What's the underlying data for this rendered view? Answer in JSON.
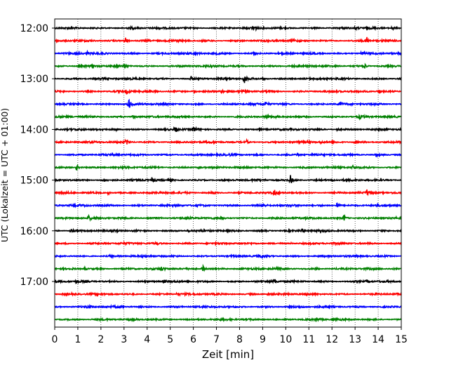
{
  "chart_data": {
    "type": "line",
    "title": "",
    "xlabel": "Zeit  [min]",
    "ylabel": "UTC (Lokalzeit = UTC + 01:00)",
    "xlim": [
      0,
      15
    ],
    "x_ticks": [
      "0",
      "1",
      "2",
      "3",
      "4",
      "5",
      "6",
      "7",
      "8",
      "9",
      "10",
      "11",
      "12",
      "13",
      "14",
      "15"
    ],
    "y_ticks": [
      "12:00",
      "13:00",
      "14:00",
      "15:00",
      "16:00",
      "17:00"
    ],
    "grid": "vertical dotted",
    "colors": [
      "#000000",
      "#ff0000",
      "#0000ff",
      "#008000"
    ],
    "traces": [
      {
        "time": "12:00",
        "color": "#000000",
        "events": [
          [
            8.6,
            3.0
          ],
          [
            3.3,
            0.9
          ],
          [
            13.0,
            0.8
          ],
          [
            14.6,
            1.1
          ]
        ]
      },
      {
        "time": "12:15",
        "color": "#ff0000",
        "events": [
          [
            3.05,
            2.2
          ],
          [
            13.5,
            2.4
          ],
          [
            10.2,
            0.7
          ]
        ]
      },
      {
        "time": "12:30",
        "color": "#0000ff",
        "events": [
          [
            1.4,
            1.2
          ],
          [
            8.6,
            1.4
          ],
          [
            13.3,
            1.6
          ],
          [
            7.0,
            0.6
          ]
        ]
      },
      {
        "time": "12:45",
        "color": "#008000",
        "events": [
          [
            3.0,
            2.0
          ],
          [
            13.4,
            2.0
          ],
          [
            1.6,
            1.0
          ]
        ]
      },
      {
        "time": "13:00",
        "color": "#000000",
        "events": [
          [
            8.2,
            3.2
          ],
          [
            5.9,
            1.4
          ],
          [
            9.0,
            1.0
          ]
        ]
      },
      {
        "time": "13:15",
        "color": "#ff0000",
        "events": [
          [
            3.1,
            2.0
          ],
          [
            14.0,
            2.4
          ],
          [
            7.2,
            1.2
          ],
          [
            6.0,
            0.9
          ]
        ]
      },
      {
        "time": "13:30",
        "color": "#0000ff",
        "events": [
          [
            3.2,
            3.8
          ],
          [
            9.1,
            2.1
          ],
          [
            12.3,
            1.5
          ]
        ]
      },
      {
        "time": "13:45",
        "color": "#008000",
        "events": [
          [
            3.4,
            1.4
          ],
          [
            9.2,
            1.3
          ],
          [
            13.2,
            1.4
          ]
        ]
      },
      {
        "time": "14:00",
        "color": "#000000",
        "events": [
          [
            5.2,
            2.4
          ],
          [
            6.0,
            2.0
          ],
          [
            2.6,
            1.2
          ],
          [
            12.2,
            1.2
          ]
        ]
      },
      {
        "time": "14:15",
        "color": "#ff0000",
        "events": [
          [
            3.1,
            2.2
          ],
          [
            8.3,
            1.0
          ],
          [
            11.5,
            0.8
          ],
          [
            13.0,
            1.0
          ]
        ]
      },
      {
        "time": "14:30",
        "color": "#0000ff",
        "events": [
          [
            10.5,
            1.2
          ],
          [
            13.9,
            1.1
          ],
          [
            7.5,
            0.8
          ]
        ]
      },
      {
        "time": "14:45",
        "color": "#008000",
        "events": [
          [
            0.95,
            2.0
          ],
          [
            6.2,
            1.4
          ],
          [
            12.9,
            1.4
          ]
        ]
      },
      {
        "time": "15:00",
        "color": "#000000",
        "events": [
          [
            10.2,
            3.0
          ],
          [
            4.2,
            2.0
          ],
          [
            2.1,
            0.9
          ],
          [
            12.0,
            0.8
          ]
        ]
      },
      {
        "time": "15:15",
        "color": "#ff0000",
        "events": [
          [
            9.5,
            1.8
          ],
          [
            13.5,
            2.0
          ],
          [
            2.3,
            1.0
          ],
          [
            6.8,
            0.8
          ]
        ]
      },
      {
        "time": "15:30",
        "color": "#0000ff",
        "events": [
          [
            12.2,
            3.0
          ],
          [
            9.0,
            0.8
          ],
          [
            13.9,
            0.8
          ]
        ]
      },
      {
        "time": "15:45",
        "color": "#008000",
        "events": [
          [
            1.45,
            1.8
          ],
          [
            12.5,
            2.4
          ],
          [
            7.2,
            0.9
          ],
          [
            4.0,
            0.8
          ]
        ]
      },
      {
        "time": "16:00",
        "color": "#000000",
        "events": [
          [
            0.7,
            1.4
          ],
          [
            10.7,
            1.5
          ],
          [
            5.8,
            0.7
          ]
        ]
      },
      {
        "time": "16:15",
        "color": "#ff0000",
        "events": [
          [
            4.4,
            0.6
          ],
          [
            10.2,
            0.6
          ]
        ]
      },
      {
        "time": "16:30",
        "color": "#0000ff",
        "events": [
          [
            2.4,
            0.9
          ],
          [
            8.9,
            1.1
          ]
        ]
      },
      {
        "time": "16:45",
        "color": "#008000",
        "events": [
          [
            6.4,
            2.4
          ],
          [
            4.6,
            1.2
          ],
          [
            11.3,
            0.9
          ],
          [
            1.3,
            0.8
          ]
        ]
      },
      {
        "time": "17:00",
        "color": "#000000",
        "events": [
          [
            9.5,
            1.8
          ],
          [
            4.7,
            1.5
          ],
          [
            13.5,
            1.2
          ],
          [
            0.9,
            0.8
          ]
        ]
      },
      {
        "time": "17:15",
        "color": "#ff0000",
        "events": [
          [
            5.3,
            1.2
          ],
          [
            9.2,
            0.8
          ],
          [
            13.9,
            0.8
          ]
        ]
      },
      {
        "time": "17:30",
        "color": "#0000ff",
        "events": [
          [
            1.4,
            1.2
          ]
        ]
      },
      {
        "time": "17:45",
        "color": "#008000",
        "events": [
          [
            11.3,
            1.3
          ]
        ]
      }
    ]
  }
}
